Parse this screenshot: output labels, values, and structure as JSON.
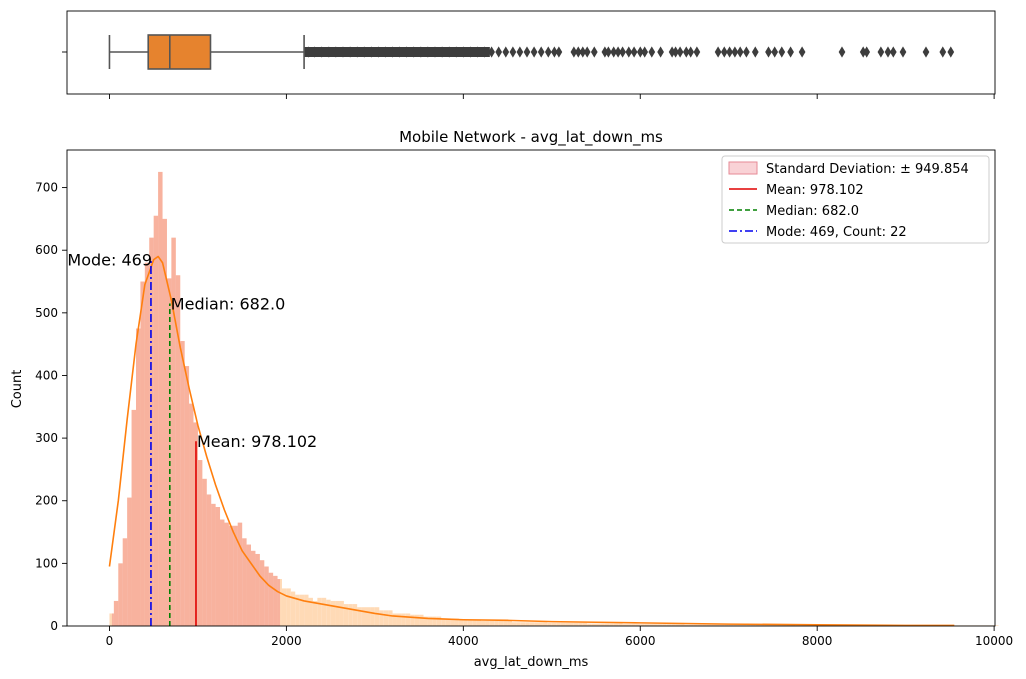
{
  "chart_data": [
    {
      "type": "box",
      "variable": "avg_lat_down_ms",
      "xlim": [
        -480,
        10010
      ],
      "whisker_low": 0,
      "q1": 438,
      "median": 682,
      "q3": 1142,
      "whisker_high": 2200,
      "box_color": "#e6832e",
      "outliers": [
        2250,
        2320,
        2400,
        2480,
        2560,
        2640,
        2720,
        2800,
        2880,
        2960,
        3040,
        3120,
        3200,
        3280,
        3360,
        3440,
        3520,
        3600,
        3680,
        3760,
        3840,
        3920,
        4000,
        4080,
        4160,
        4240,
        4320,
        4400,
        4480,
        4560,
        4640,
        4720,
        4800,
        4880,
        4960,
        5030,
        5080,
        5250,
        5300,
        5350,
        5400,
        5480,
        5600,
        5640,
        5700,
        5750,
        5800,
        5870,
        5930,
        6000,
        6050,
        6130,
        6230,
        6360,
        6400,
        6450,
        6520,
        6570,
        6640,
        6880,
        6950,
        7010,
        7070,
        7130,
        7200,
        7300,
        7450,
        7520,
        7600,
        7700,
        7830,
        8280,
        8520,
        8560,
        8720,
        8800,
        8860,
        8970,
        9230,
        9420,
        9510
      ]
    },
    {
      "type": "histogram",
      "title": "Mobile Network - avg_lat_down_ms",
      "xlabel": "avg_lat_down_ms",
      "ylabel": "Count",
      "xlim": [
        -480,
        10010
      ],
      "ylim": [
        0,
        760
      ],
      "xticks": [
        0,
        2000,
        4000,
        6000,
        8000,
        10000
      ],
      "yticks": [
        0,
        100,
        200,
        300,
        400,
        500,
        600,
        700
      ],
      "bin_width": 50,
      "bin_start": 0,
      "counts": [
        20,
        40,
        100,
        140,
        205,
        345,
        475,
        550,
        580,
        620,
        655,
        725,
        650,
        555,
        620,
        560,
        455,
        415,
        355,
        325,
        265,
        235,
        210,
        195,
        190,
        170,
        165,
        160,
        160,
        165,
        140,
        130,
        120,
        115,
        105,
        95,
        85,
        80,
        75,
        60,
        60,
        55,
        50,
        50,
        50,
        45,
        40,
        45,
        45,
        42,
        40,
        40,
        40,
        35,
        35,
        35,
        30,
        30,
        30,
        30,
        30,
        25,
        25,
        25,
        20,
        20,
        20,
        20,
        18,
        18,
        18,
        15,
        15,
        15,
        15,
        12,
        12,
        12,
        12,
        10,
        10,
        10,
        10,
        10,
        8,
        8,
        8,
        8,
        8,
        8,
        8,
        6,
        6,
        6,
        6,
        6,
        6,
        6,
        6,
        5,
        5,
        5,
        5,
        5,
        5,
        5,
        5,
        5,
        4,
        4,
        4,
        4,
        4,
        4,
        4,
        4,
        3,
        3,
        3,
        3,
        3,
        3,
        3,
        3,
        3,
        3,
        3,
        3,
        3,
        3,
        2,
        2,
        2,
        2,
        2,
        2,
        2,
        2,
        2,
        2,
        2,
        2,
        2,
        2,
        2,
        2,
        2,
        2,
        2,
        2,
        2,
        2,
        2,
        2,
        2,
        1,
        1,
        1,
        1,
        1,
        1,
        1,
        1,
        1,
        1,
        1,
        1,
        1,
        1,
        1,
        1,
        1,
        1,
        1,
        1,
        1,
        1,
        1,
        1,
        1,
        1,
        1,
        1,
        1,
        1,
        1,
        1,
        1,
        1,
        1,
        1,
        1,
        1,
        1,
        1,
        1,
        1,
        1,
        1,
        1,
        1
      ],
      "kde": {
        "x": [
          0,
          100,
          200,
          300,
          400,
          500,
          550,
          600,
          700,
          800,
          900,
          1000,
          1100,
          1200,
          1300,
          1400,
          1500,
          1600,
          1700,
          1800,
          1900,
          2000,
          2200,
          2400,
          2600,
          2800,
          3000,
          3200,
          3400,
          3600,
          3800,
          4000,
          4500,
          5000,
          5500,
          6000,
          6500,
          7000,
          8000,
          9000,
          9550
        ],
        "y": [
          95,
          200,
          330,
          450,
          545,
          585,
          590,
          580,
          520,
          445,
          380,
          320,
          270,
          225,
          185,
          150,
          120,
          100,
          80,
          65,
          55,
          48,
          40,
          35,
          30,
          25,
          20,
          16,
          14,
          12,
          11,
          10,
          9,
          7,
          6,
          5,
          4,
          3,
          2,
          1,
          1
        ]
      },
      "colors": {
        "hist": "#ffdab6",
        "std_band": "#f08080",
        "kde": "#ff7f0e",
        "mean": "#e00000",
        "median": "#008000",
        "mode": "#0000ee"
      },
      "std_band": {
        "low": 28.248,
        "high": 1927.956
      },
      "mean": {
        "value": 978.102,
        "height": 295,
        "label": "Mean: 978.102"
      },
      "median": {
        "value": 682.0,
        "height": 515,
        "label": "Median: 682.0"
      },
      "mode": {
        "value": 469,
        "height": 585,
        "label": "Mode: 469"
      },
      "legend": {
        "position": "upper right",
        "entries": [
          {
            "kind": "patch",
            "label": "Standard Deviation: ± 949.854"
          },
          {
            "kind": "solid",
            "label": "Mean: 978.102"
          },
          {
            "kind": "dashed",
            "label": "Median: 682.0"
          },
          {
            "kind": "dashdot",
            "label": "Mode: 469, Count: 22"
          }
        ]
      }
    }
  ]
}
